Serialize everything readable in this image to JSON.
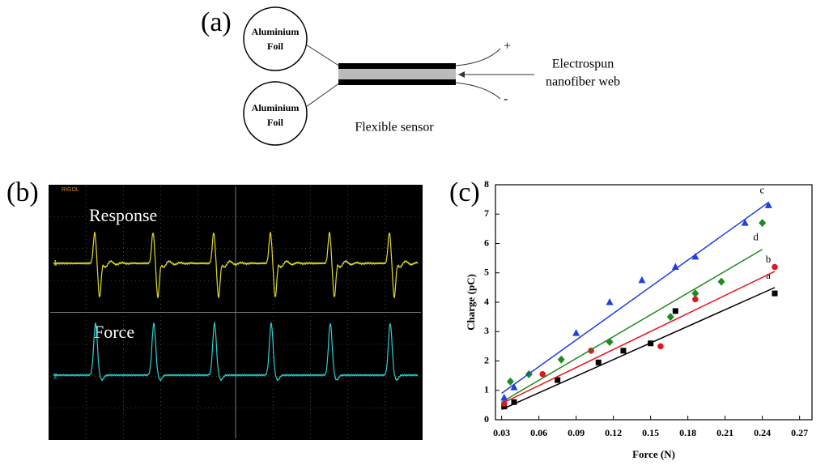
{
  "panel_labels": [
    "(a)",
    "(b)",
    "(c)"
  ],
  "diagram": {
    "foil_top": [
      "Aluminium",
      "Foil"
    ],
    "foil_bottom": [
      "Aluminium",
      "Foil"
    ],
    "plus": "+",
    "minus": "-",
    "web_label": [
      "Electrospun",
      "nanofiber web"
    ],
    "sensor_label": "Flexible sensor"
  },
  "oscilloscope": {
    "brand": "RIGOL",
    "channel_1": "1",
    "channel_2": "2",
    "response_label": "Response",
    "force_label": "Force"
  },
  "chart_data": {
    "type": "scatter",
    "x_label": "Force (N)",
    "y_label": "Charge (pC)",
    "xlim": [
      0.025,
      0.28
    ],
    "ylim": [
      0,
      8
    ],
    "xticks": [
      0.03,
      0.06,
      0.09,
      0.12,
      0.15,
      0.18,
      0.21,
      0.24,
      0.27
    ],
    "yticks": [
      0,
      1,
      2,
      3,
      4,
      5,
      6,
      7,
      8
    ],
    "series": [
      {
        "name": "a",
        "color": "#000000",
        "marker": "square",
        "x": [
          0.032,
          0.04,
          0.075,
          0.108,
          0.128,
          0.15,
          0.17,
          0.25
        ],
        "values": [
          0.45,
          0.6,
          1.35,
          1.95,
          2.35,
          2.6,
          3.7,
          4.3
        ],
        "fit": {
          "x": [
            0.03,
            0.25
          ],
          "y": [
            0.35,
            4.5
          ]
        }
      },
      {
        "name": "b",
        "color": "#e8141c",
        "marker": "circle",
        "x": [
          0.032,
          0.063,
          0.102,
          0.158,
          0.186,
          0.25
        ],
        "values": [
          0.55,
          1.55,
          2.35,
          2.5,
          4.1,
          5.2
        ],
        "fit": {
          "x": [
            0.03,
            0.25
          ],
          "y": [
            0.55,
            5.05
          ]
        }
      },
      {
        "name": "d",
        "color": "#1f8a1f",
        "marker": "diamond",
        "x": [
          0.037,
          0.052,
          0.078,
          0.117,
          0.166,
          0.186,
          0.207,
          0.24
        ],
        "values": [
          1.3,
          1.55,
          2.05,
          2.65,
          3.5,
          4.3,
          4.7,
          6.7
        ],
        "fit": {
          "x": [
            0.03,
            0.24
          ],
          "y": [
            0.6,
            5.8
          ]
        }
      },
      {
        "name": "c",
        "color": "#1f3fe0",
        "marker": "triangle",
        "x": [
          0.032,
          0.04,
          0.09,
          0.117,
          0.143,
          0.17,
          0.186,
          0.226,
          0.245
        ],
        "values": [
          0.75,
          1.1,
          2.95,
          4.0,
          4.75,
          5.2,
          5.55,
          6.7,
          7.3
        ],
        "fit": {
          "x": [
            0.03,
            0.245
          ],
          "y": [
            0.9,
            7.4
          ]
        }
      }
    ]
  }
}
